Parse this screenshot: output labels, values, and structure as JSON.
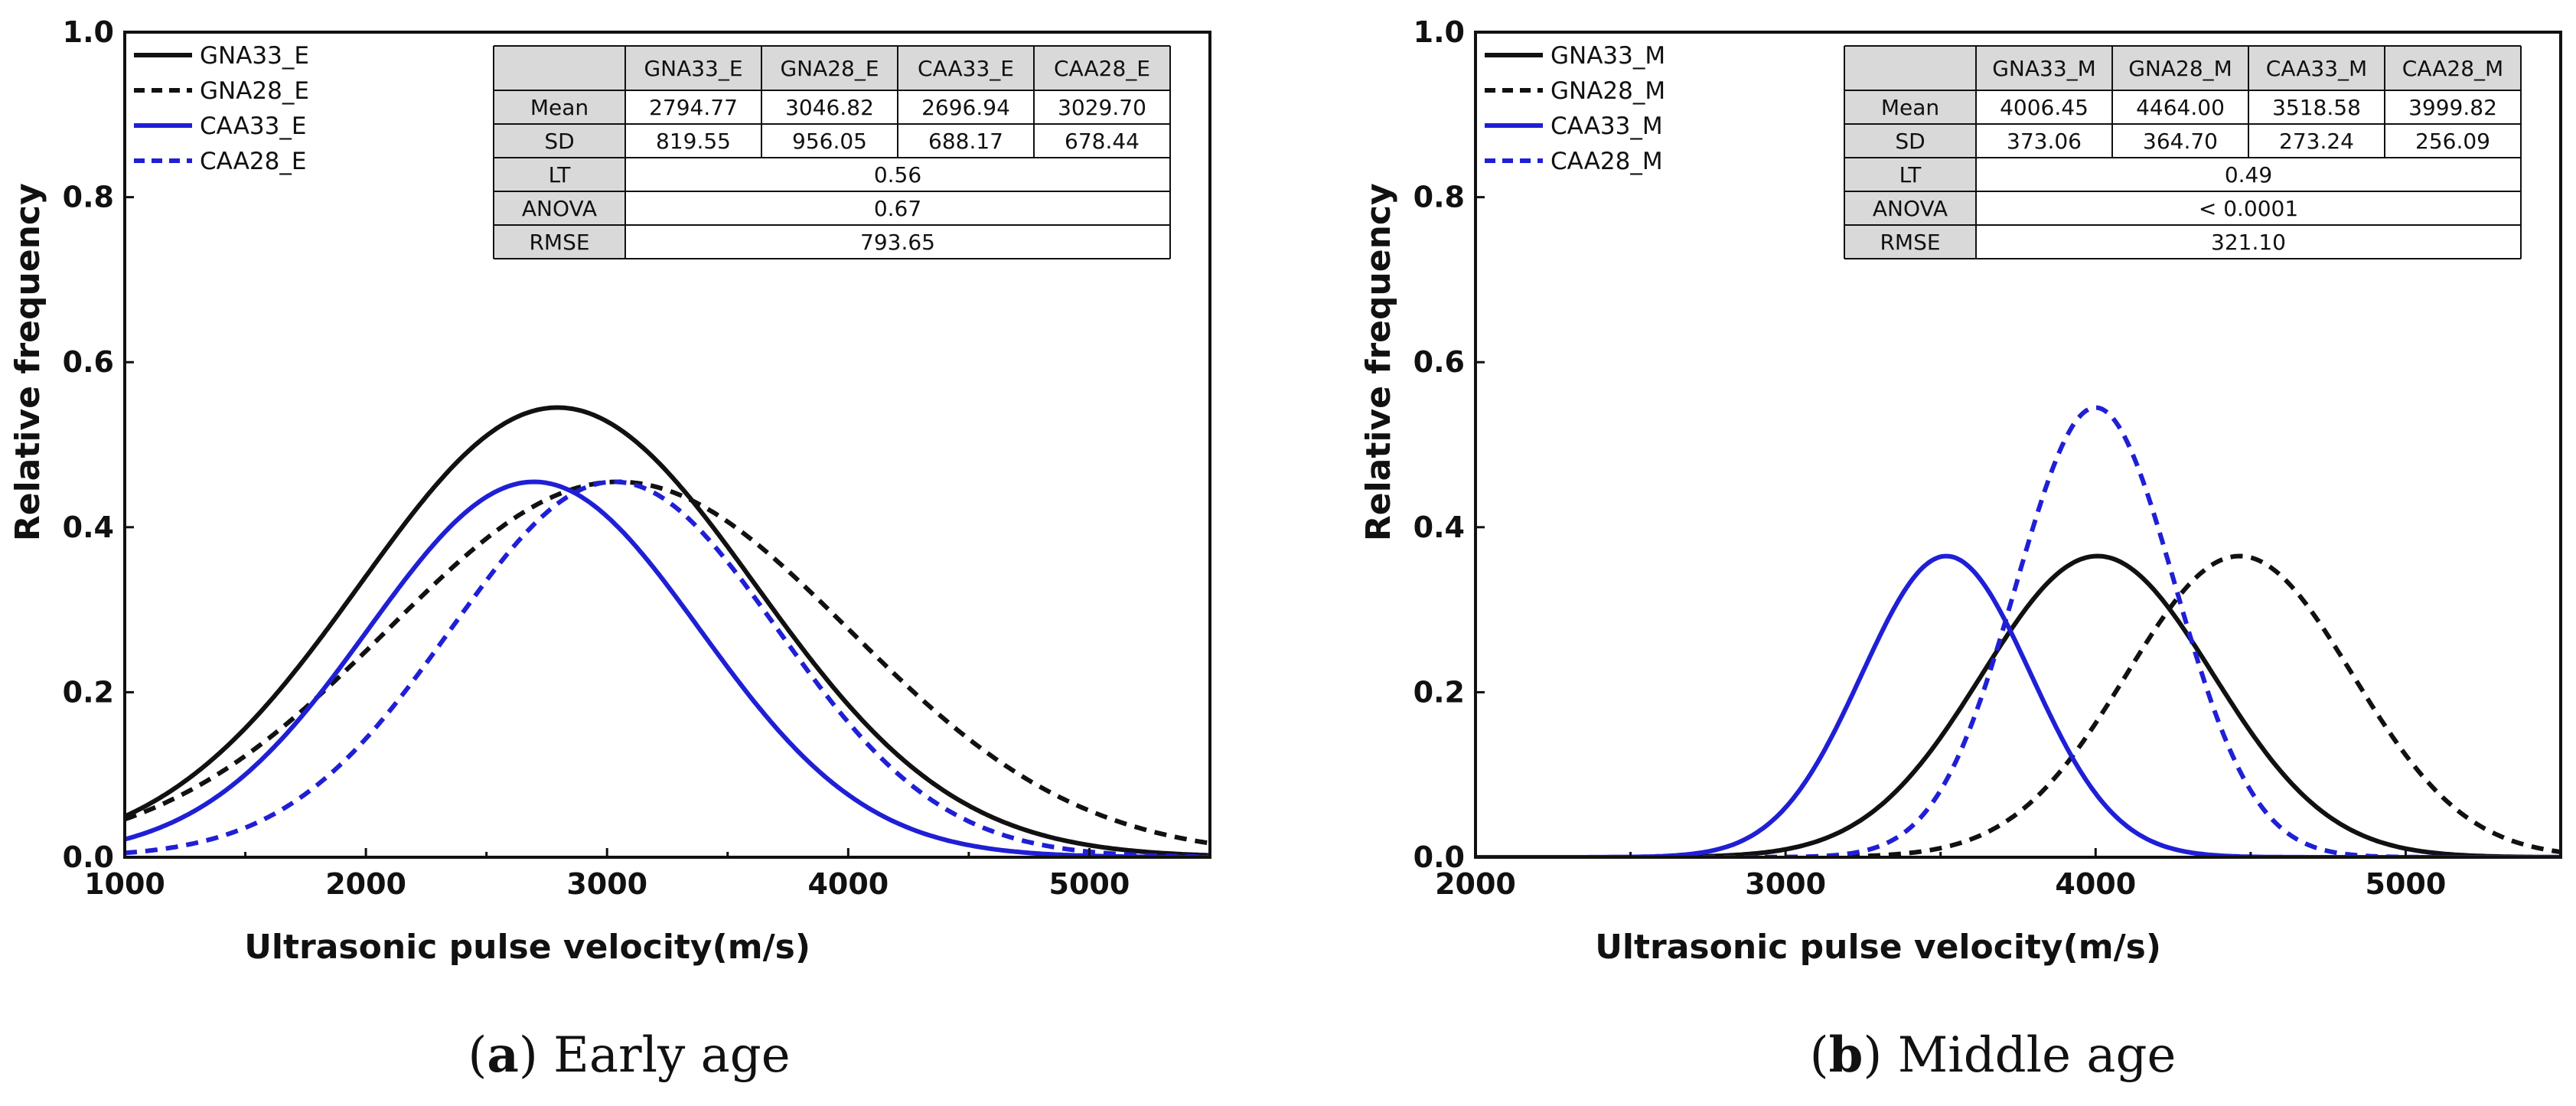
{
  "colors": {
    "black": "#111111",
    "blue": "#1f1fd6",
    "header_fill": "#d9d9d9"
  },
  "chart_data": [
    {
      "type": "line",
      "id": "a",
      "caption_letter": "a",
      "caption_text": "Early age",
      "xlabel": "Ultrasonic pulse velocity(m/s)",
      "ylabel": "Relative frequency",
      "xlim": [
        1000,
        5500
      ],
      "ylim": [
        0,
        1.0
      ],
      "xticks": [
        "1000",
        "2000",
        "3000",
        "4000",
        "5000"
      ],
      "xtick_values": [
        1000,
        2000,
        3000,
        4000,
        5000
      ],
      "yticks": [
        "0.0",
        "0.2",
        "0.4",
        "0.6",
        "0.8",
        "1.0"
      ],
      "ytick_values": [
        0,
        0.2,
        0.4,
        0.6,
        0.8,
        1.0
      ],
      "series": [
        {
          "name": "GNA33_E",
          "mean": 2794.77,
          "sd": 819.55,
          "peak": 0.545,
          "color": "#111111",
          "dashed": false
        },
        {
          "name": "GNA28_E",
          "mean": 3046.82,
          "sd": 956.05,
          "peak": 0.455,
          "color": "#111111",
          "dashed": true
        },
        {
          "name": "CAA33_E",
          "mean": 2696.94,
          "sd": 688.17,
          "peak": 0.455,
          "color": "#1f1fd6",
          "dashed": false
        },
        {
          "name": "CAA28_E",
          "mean": 3029.7,
          "sd": 678.44,
          "peak": 0.455,
          "color": "#1f1fd6",
          "dashed": true
        }
      ],
      "table": {
        "headers": [
          "",
          "GNA33_E",
          "GNA28_E",
          "CAA33_E",
          "CAA28_E"
        ],
        "rows": [
          {
            "label": "Mean",
            "cells": [
              "2794.77",
              "3046.82",
              "2696.94",
              "3029.70"
            ]
          },
          {
            "label": "SD",
            "cells": [
              "819.55",
              "956.05",
              "688.17",
              "678.44"
            ]
          },
          {
            "label": "LT",
            "span": "0.56"
          },
          {
            "label": "ANOVA",
            "span": "0.67"
          },
          {
            "label": "RMSE",
            "span": "793.65"
          }
        ]
      }
    },
    {
      "type": "line",
      "id": "b",
      "caption_letter": "b",
      "caption_text": "Middle age",
      "xlabel": "Ultrasonic pulse velocity(m/s)",
      "ylabel": "Relative frequency",
      "xlim": [
        2000,
        5500
      ],
      "ylim": [
        0,
        1.0
      ],
      "xticks": [
        "2000",
        "3000",
        "4000",
        "5000"
      ],
      "xtick_values": [
        2000,
        3000,
        4000,
        5000
      ],
      "yticks": [
        "0.0",
        "0.2",
        "0.4",
        "0.6",
        "0.8",
        "1.0"
      ],
      "ytick_values": [
        0,
        0.2,
        0.4,
        0.6,
        0.8,
        1.0
      ],
      "series": [
        {
          "name": "GNA33_M",
          "mean": 4006.45,
          "sd": 373.06,
          "peak": 0.365,
          "color": "#111111",
          "dashed": false
        },
        {
          "name": "GNA28_M",
          "mean": 4464.0,
          "sd": 364.7,
          "peak": 0.365,
          "color": "#111111",
          "dashed": true
        },
        {
          "name": "CAA33_M",
          "mean": 3518.58,
          "sd": 273.24,
          "peak": 0.365,
          "color": "#1f1fd6",
          "dashed": false
        },
        {
          "name": "CAA28_M",
          "mean": 3999.82,
          "sd": 256.09,
          "peak": 0.545,
          "color": "#1f1fd6",
          "dashed": true
        }
      ],
      "table": {
        "headers": [
          "",
          "GNA33_M",
          "GNA28_M",
          "CAA33_M",
          "CAA28_M"
        ],
        "rows": [
          {
            "label": "Mean",
            "cells": [
              "4006.45",
              "4464.00",
              "3518.58",
              "3999.82"
            ]
          },
          {
            "label": "SD",
            "cells": [
              "373.06",
              "364.70",
              "273.24",
              "256.09"
            ]
          },
          {
            "label": "LT",
            "span": "0.49"
          },
          {
            "label": "ANOVA",
            "span": "< 0.0001"
          },
          {
            "label": "RMSE",
            "span": "321.10"
          }
        ]
      }
    }
  ]
}
